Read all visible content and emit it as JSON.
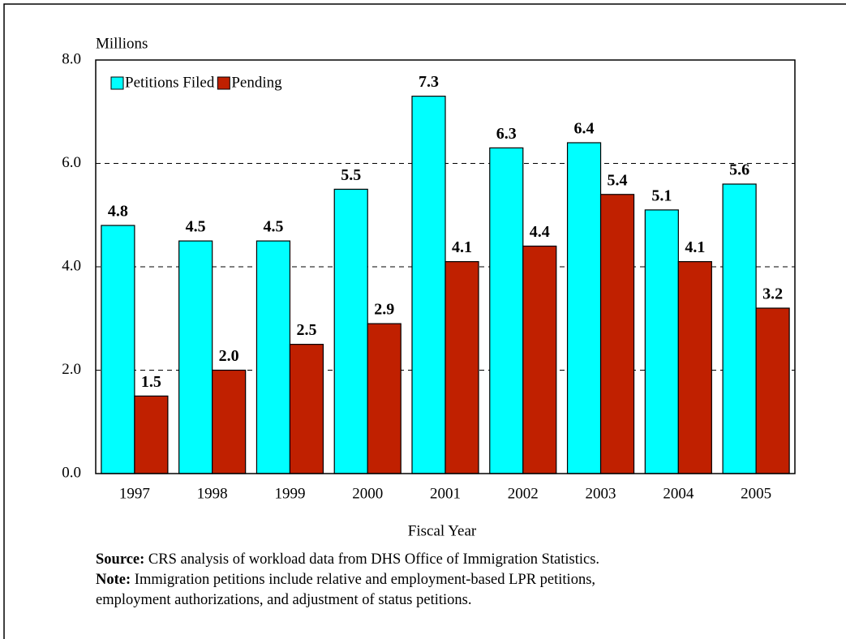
{
  "chart_data": {
    "type": "bar",
    "y_axis_label": "Millions",
    "x_axis_label": "Fiscal Year",
    "categories": [
      "1997",
      "1998",
      "1999",
      "2000",
      "2001",
      "2002",
      "2003",
      "2004",
      "2005"
    ],
    "series": [
      {
        "name": "Petitions Filed",
        "color": "#00ffff",
        "values": [
          4.8,
          4.5,
          4.5,
          5.5,
          7.3,
          6.3,
          6.4,
          5.1,
          5.6
        ],
        "value_labels": [
          "4.8",
          "4.5",
          "4.5",
          "5.5",
          "7.3",
          "6.3",
          "6.4",
          "5.1",
          "5.6"
        ]
      },
      {
        "name": "Pending",
        "color": "#c02000",
        "values": [
          1.5,
          2.0,
          2.5,
          2.9,
          4.1,
          4.4,
          5.4,
          4.1,
          3.2
        ],
        "value_labels": [
          "1.5",
          "2.0",
          "2.5",
          "2.9",
          "4.1",
          "4.4",
          "5.4",
          "4.1",
          "3.2"
        ]
      }
    ],
    "ylim": [
      0,
      8
    ],
    "yticks": [
      {
        "value": 0,
        "label": "0.0"
      },
      {
        "value": 2,
        "label": "2.0"
      },
      {
        "value": 4,
        "label": "4.0"
      },
      {
        "value": 6,
        "label": "6.0"
      },
      {
        "value": 8,
        "label": "8.0"
      }
    ],
    "grid": true,
    "legend": "upper left",
    "source_label": "Source:",
    "source": "CRS analysis of workload data from DHS Office of Immigration Statistics.",
    "note_label": "Note:",
    "note": [
      "Immigration petitions include relative and employment-based LPR petitions,",
      "employment authorizations, and adjustment of status petitions."
    ]
  }
}
